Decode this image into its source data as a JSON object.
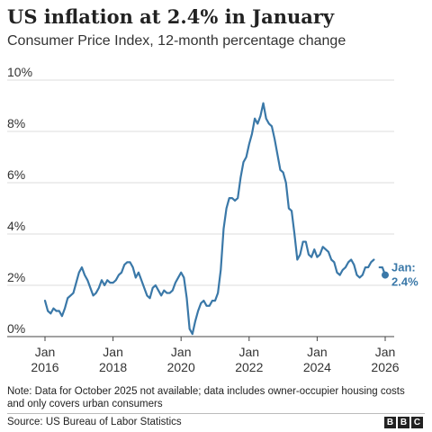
{
  "header": {
    "title": "US inflation at 2.4% in January",
    "subtitle": "Consumer Price Index, 12-month percentage change"
  },
  "footer": {
    "note": "Note: Data for October 2025 not available; data includes owner-occupier housing costs and only covers urban consumers",
    "source": "Source: US Bureau of Labor Statistics",
    "logo_letters": [
      "B",
      "B",
      "C"
    ]
  },
  "chart_data": {
    "type": "line",
    "title": "US inflation at 2.4% in January",
    "subtitle": "Consumer Price Index, 12-month percentage change",
    "xlabel": "",
    "ylabel": "",
    "ylim": [
      0,
      10
    ],
    "xlim": [
      "2016-01",
      "2026-01"
    ],
    "y_ticks": [
      0,
      2,
      4,
      6,
      8,
      10
    ],
    "y_tick_labels": [
      "0%",
      "2%",
      "4%",
      "6%",
      "8%",
      "10%"
    ],
    "x_ticks": [
      "2016-01",
      "2018-01",
      "2020-01",
      "2022-01",
      "2024-01",
      "2026-01"
    ],
    "x_tick_labels": [
      [
        "Jan",
        "2016"
      ],
      [
        "Jan",
        "2018"
      ],
      [
        "Jan",
        "2020"
      ],
      [
        "Jan",
        "2022"
      ],
      [
        "Jan",
        "2024"
      ],
      [
        "Jan",
        "2026"
      ]
    ],
    "grid": true,
    "line_color": "#3a78a8",
    "series": [
      {
        "segments": [
          {
            "x": [
              "2016-01",
              "2016-02",
              "2016-03",
              "2016-04",
              "2016-05",
              "2016-06",
              "2016-07",
              "2016-08",
              "2016-09",
              "2016-10",
              "2016-11",
              "2016-12",
              "2017-01",
              "2017-02",
              "2017-03",
              "2017-04",
              "2017-05",
              "2017-06",
              "2017-07",
              "2017-08",
              "2017-09",
              "2017-10",
              "2017-11",
              "2017-12",
              "2018-01",
              "2018-02",
              "2018-03",
              "2018-04",
              "2018-05",
              "2018-06",
              "2018-07",
              "2018-08",
              "2018-09",
              "2018-10",
              "2018-11",
              "2018-12",
              "2019-01",
              "2019-02",
              "2019-03",
              "2019-04",
              "2019-05",
              "2019-06",
              "2019-07",
              "2019-08",
              "2019-09",
              "2019-10",
              "2019-11",
              "2019-12",
              "2020-01",
              "2020-02",
              "2020-03",
              "2020-04",
              "2020-05",
              "2020-06",
              "2020-07",
              "2020-08",
              "2020-09",
              "2020-10",
              "2020-11",
              "2020-12",
              "2021-01",
              "2021-02",
              "2021-03",
              "2021-04",
              "2021-05",
              "2021-06",
              "2021-07",
              "2021-08",
              "2021-09",
              "2021-10",
              "2021-11",
              "2021-12",
              "2022-01",
              "2022-02",
              "2022-03",
              "2022-04",
              "2022-05",
              "2022-06",
              "2022-07",
              "2022-08",
              "2022-09",
              "2022-10",
              "2022-11",
              "2022-12",
              "2023-01",
              "2023-02",
              "2023-03",
              "2023-04",
              "2023-05",
              "2023-06",
              "2023-07",
              "2023-08",
              "2023-09",
              "2023-10",
              "2023-11",
              "2023-12",
              "2024-01",
              "2024-02",
              "2024-03",
              "2024-04",
              "2024-05",
              "2024-06",
              "2024-07",
              "2024-08",
              "2024-09",
              "2024-10",
              "2024-11",
              "2024-12",
              "2025-01",
              "2025-02",
              "2025-03",
              "2025-04",
              "2025-05",
              "2025-06",
              "2025-07",
              "2025-08",
              "2025-09"
            ],
            "values": [
              1.4,
              1.0,
              0.9,
              1.1,
              1.0,
              1.0,
              0.8,
              1.1,
              1.5,
              1.6,
              1.7,
              2.1,
              2.5,
              2.7,
              2.4,
              2.2,
              1.9,
              1.6,
              1.7,
              1.9,
              2.2,
              2.0,
              2.2,
              2.1,
              2.1,
              2.2,
              2.4,
              2.5,
              2.8,
              2.9,
              2.9,
              2.7,
              2.3,
              2.5,
              2.2,
              1.9,
              1.6,
              1.5,
              1.9,
              2.0,
              1.8,
              1.6,
              1.8,
              1.7,
              1.7,
              1.8,
              2.1,
              2.3,
              2.5,
              2.3,
              1.5,
              0.3,
              0.1,
              0.6,
              1.0,
              1.3,
              1.4,
              1.2,
              1.2,
              1.4,
              1.4,
              1.7,
              2.6,
              4.2,
              5.0,
              5.4,
              5.4,
              5.3,
              5.4,
              6.2,
              6.8,
              7.0,
              7.5,
              7.9,
              8.5,
              8.3,
              8.6,
              9.1,
              8.5,
              8.3,
              8.2,
              7.7,
              7.1,
              6.5,
              6.4,
              6.0,
              5.0,
              4.9,
              4.0,
              3.0,
              3.2,
              3.7,
              3.7,
              3.2,
              3.1,
              3.4,
              3.1,
              3.2,
              3.5,
              3.4,
              3.3,
              3.0,
              2.9,
              2.5,
              2.4,
              2.6,
              2.7,
              2.9,
              3.0,
              2.8,
              2.4,
              2.3,
              2.4,
              2.7,
              2.7,
              2.9,
              3.0
            ]
          },
          {
            "x": [
              "2025-11",
              "2025-12",
              "2026-01"
            ],
            "values": [
              2.7,
              2.7,
              2.4
            ]
          }
        ]
      }
    ],
    "annotation": {
      "x": "2026-01",
      "value": 2.4,
      "label_lines": [
        "Jan:",
        "2.4%"
      ]
    }
  }
}
